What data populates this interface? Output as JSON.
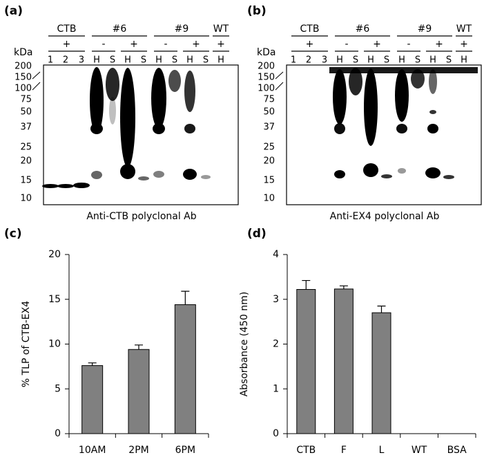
{
  "blots": [
    {
      "panel": "(a)",
      "groups": [
        "CTB",
        "#6",
        "#9",
        "WT"
      ],
      "signs": [
        "+",
        "-",
        "+",
        "-",
        "+",
        "+"
      ],
      "lanes": [
        "1",
        "2",
        "3",
        "H",
        "S",
        "H",
        "S",
        "H",
        "S",
        "H",
        "S",
        "H"
      ],
      "kda_label": "kDa",
      "markers": [
        200,
        150,
        100,
        75,
        50,
        37,
        25,
        20,
        15,
        10
      ],
      "caption": "Anti-CTB polyclonal Ab"
    },
    {
      "panel": "(b)",
      "groups": [
        "CTB",
        "#6",
        "#9",
        "WT"
      ],
      "signs": [
        "+",
        "-",
        "+",
        "-",
        "+",
        "+"
      ],
      "lanes": [
        "1",
        "2",
        "3",
        "H",
        "S",
        "H",
        "S",
        "H",
        "S",
        "H",
        "S",
        "H"
      ],
      "kda_label": "kDa",
      "markers": [
        200,
        150,
        100,
        75,
        50,
        37,
        25,
        20,
        15,
        10
      ],
      "caption": "Anti-EX4 polyclonal Ab"
    }
  ],
  "chart_data": [
    {
      "type": "bar",
      "panel": "(c)",
      "y_label": "% TLP of CTB-EX4",
      "categories": [
        "10AM",
        "2PM",
        "6PM"
      ],
      "values": [
        7.6,
        9.4,
        14.4
      ],
      "errors": [
        0.3,
        0.5,
        1.5
      ],
      "color": "#808080",
      "ylim": [
        0,
        20
      ],
      "yticks": [
        0,
        5,
        10,
        15,
        20
      ]
    },
    {
      "type": "bar",
      "panel": "(d)",
      "y_label": "Absorbance (450 nm)",
      "categories": [
        "CTB",
        "F",
        "L",
        "WT",
        "BSA"
      ],
      "values": [
        3.22,
        3.23,
        2.7,
        0,
        0
      ],
      "errors": [
        0.2,
        0.07,
        0.15,
        null,
        null
      ],
      "color": "#808080",
      "ylim": [
        0,
        4
      ],
      "yticks": [
        0,
        1,
        2,
        3,
        4
      ]
    }
  ]
}
